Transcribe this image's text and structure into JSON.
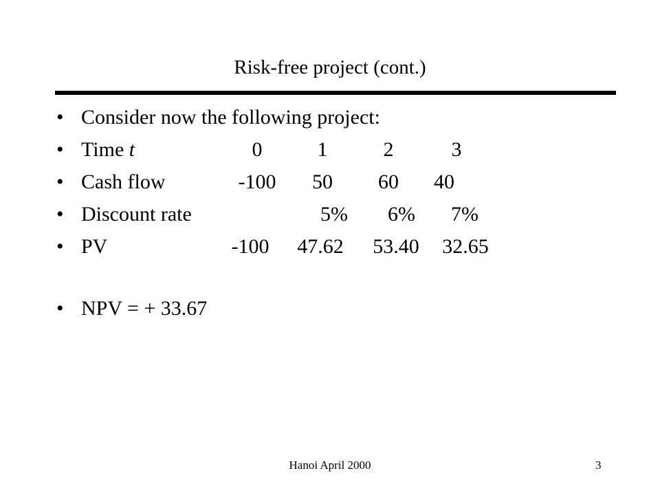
{
  "slide": {
    "title": "Risk-free project (cont.)",
    "bullet_glyph": "•",
    "intro": "Consider now the following project:",
    "table": {
      "time_label": "Time ",
      "time_var": "t",
      "time_values": [
        "0",
        "1",
        "2",
        "3"
      ],
      "cash_flow_label": "Cash flow",
      "cash_flow_values": [
        "-100",
        "50",
        "60",
        "40"
      ],
      "discount_rate_label": "Discount rate",
      "discount_rate_values": [
        "5%",
        "6%",
        "7%"
      ],
      "pv_label": "PV",
      "pv_values": [
        "-100",
        "47.62",
        "53.40",
        "32.65"
      ]
    },
    "npv": "NPV = + 33.67"
  },
  "footer": {
    "center_text": "Hanoi April 2000",
    "page_number": "3"
  }
}
